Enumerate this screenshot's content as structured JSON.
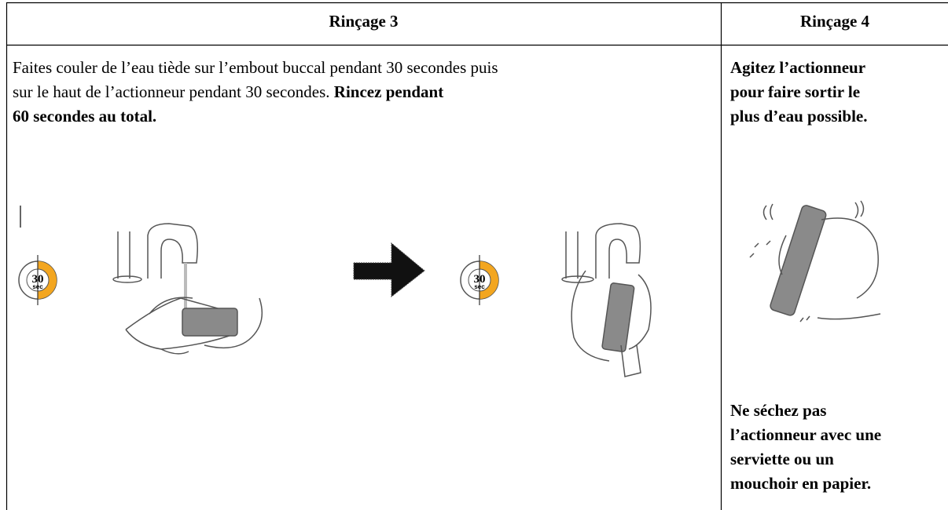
{
  "table": {
    "headers": [
      "Rinçage 3",
      "Rinçage 4"
    ],
    "col1": {
      "line1": "Faites couler de l’eau tiède sur l’embout buccal pendant 30 secondes puis",
      "line2": "sur le haut de l’actionneur pendant 30 secondes. ",
      "line2_bold": "Rincez pendant",
      "line3_bold": "60 secondes au total.",
      "timers": [
        {
          "value": "30",
          "unit": "sec"
        },
        {
          "value": "30",
          "unit": "sec"
        }
      ]
    },
    "col2": {
      "top_lines": [
        "Agitez l’actionneur",
        "pour faire sortir le",
        "plus d’eau possible."
      ],
      "bottom_lines": [
        "Ne séchez pas",
        "l’actionneur avec une",
        "serviette ou un",
        "mouchoir en papier."
      ]
    }
  }
}
